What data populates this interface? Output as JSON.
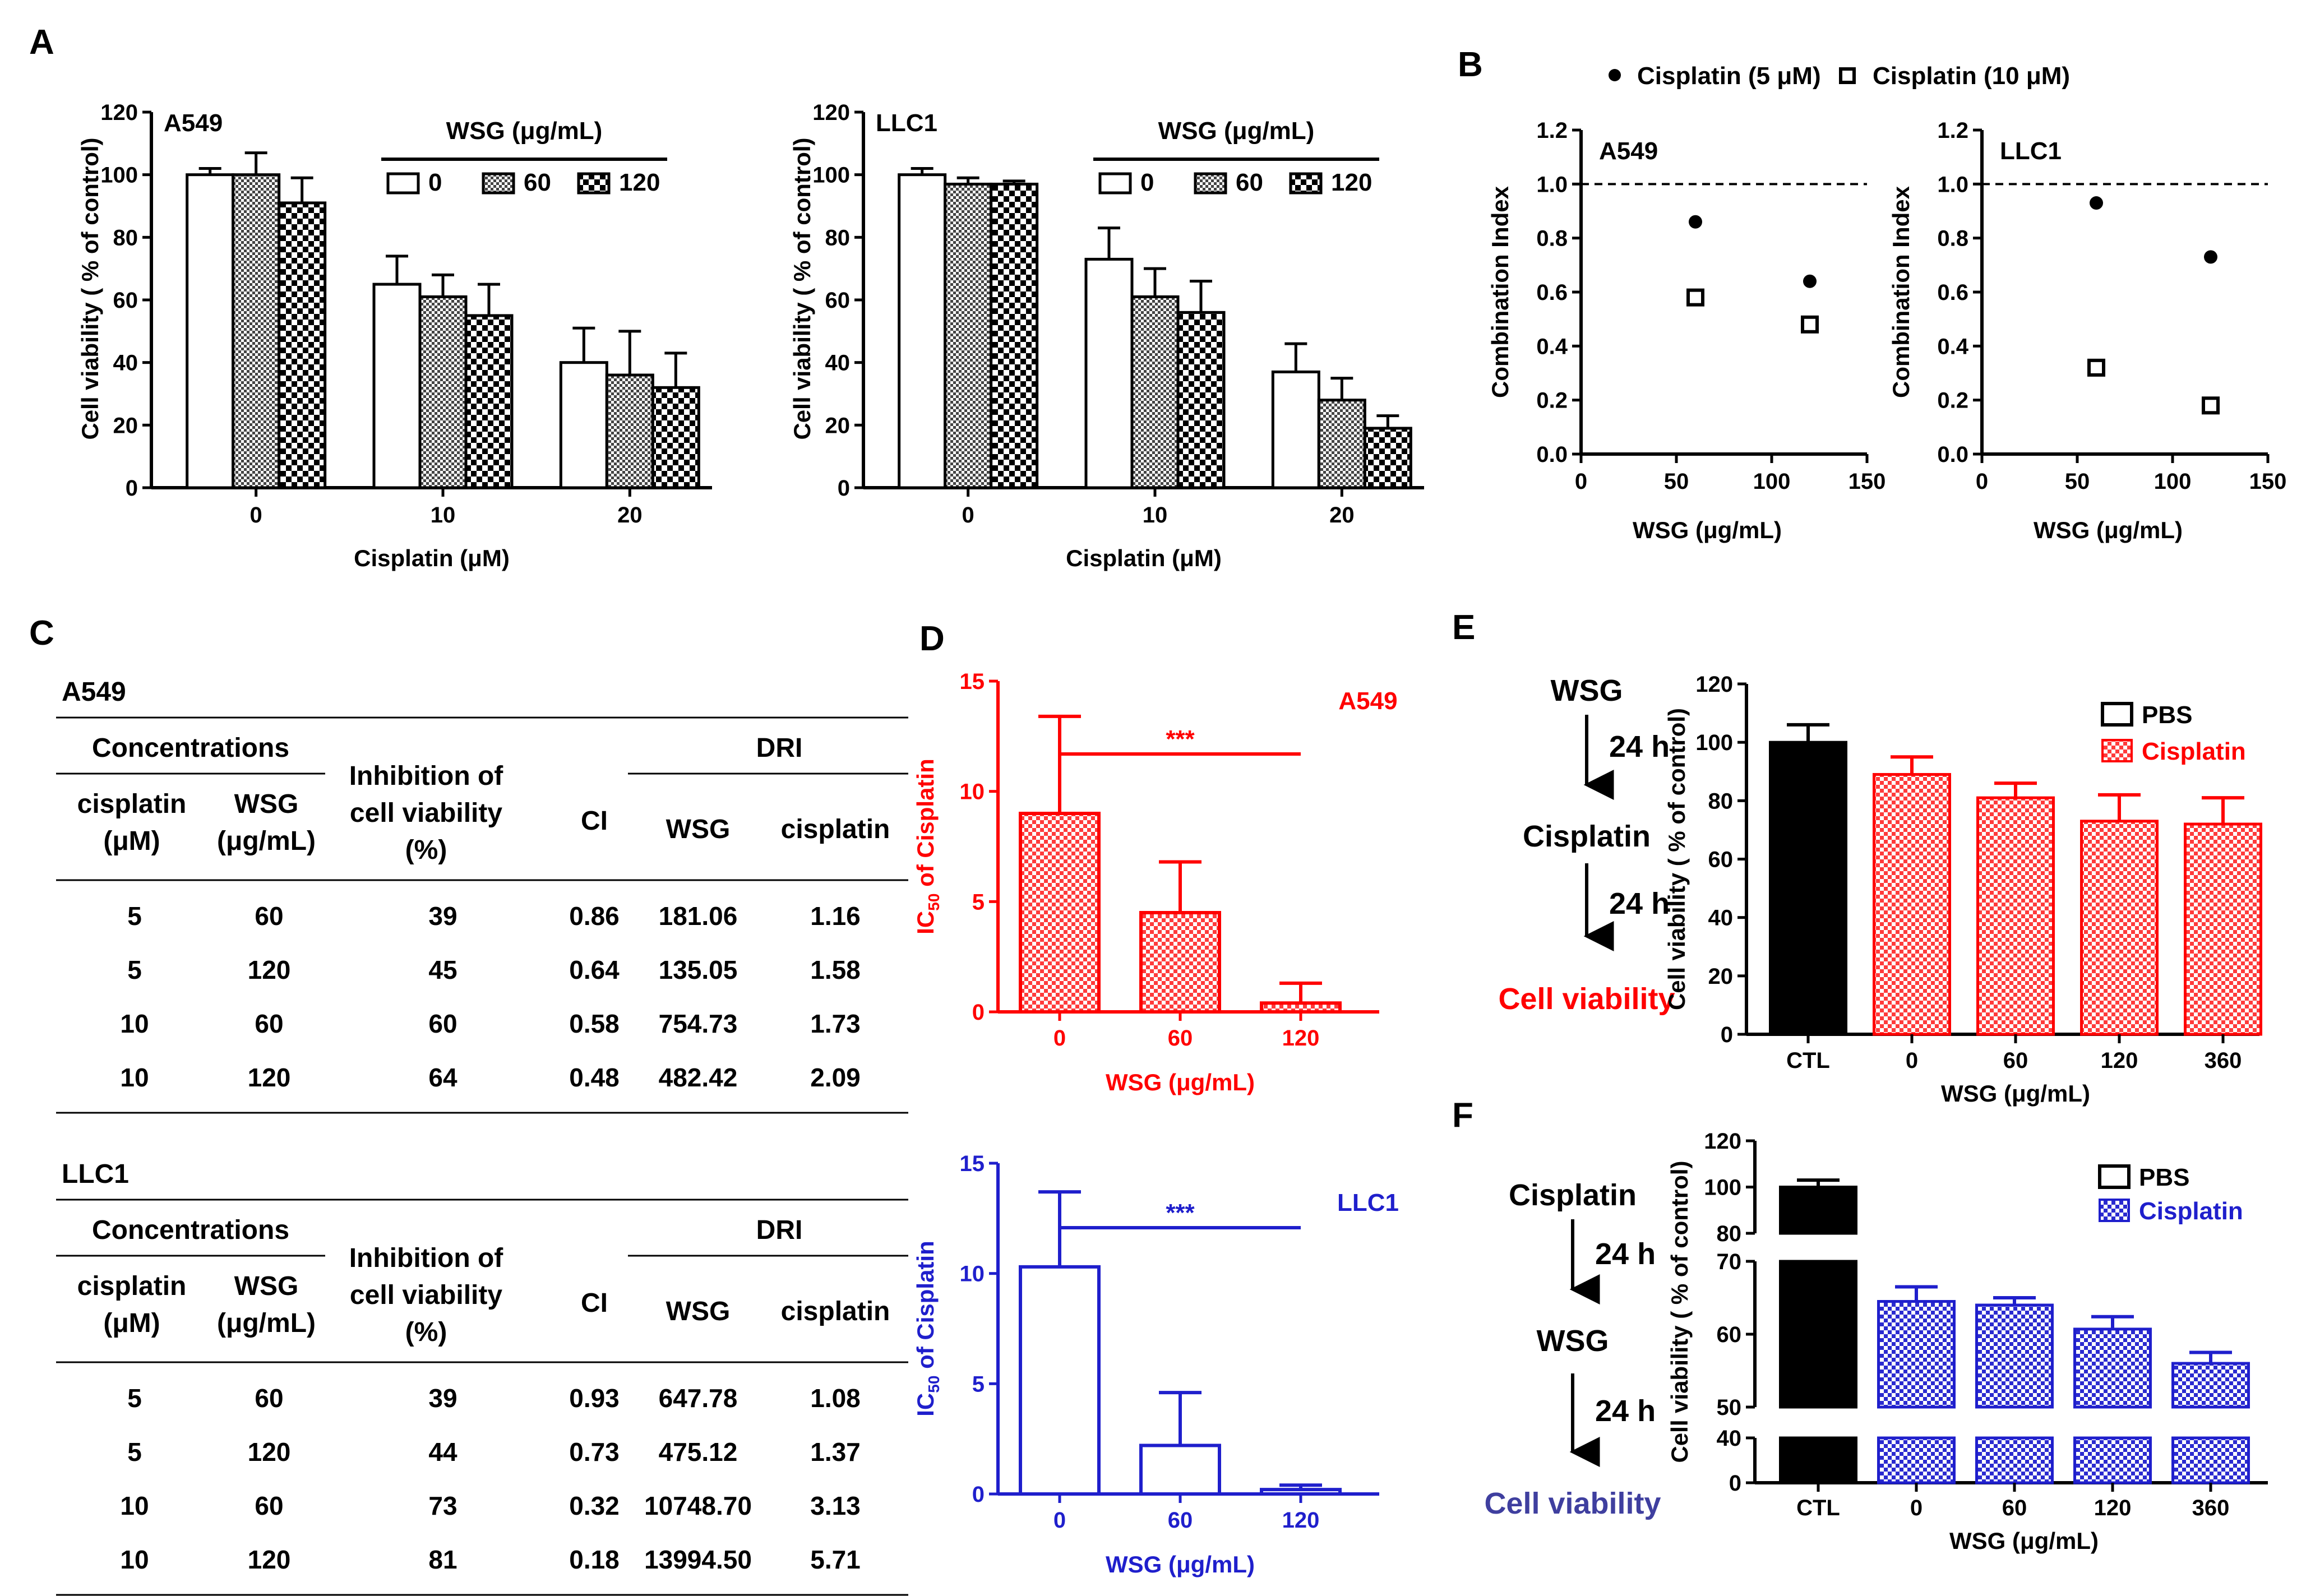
{
  "panel_labels": {
    "a": "A",
    "b": "B",
    "c": "C",
    "d": "D",
    "e": "E",
    "f": "F"
  },
  "colors": {
    "red": "#ff0000",
    "blue": "#1f1fcc",
    "flow_blue": "#3f3f9f",
    "black": "#000000"
  },
  "text": {
    "wsg_title": "WSG (μg/mL)",
    "wsg_axis": "WSG (μg/mL)",
    "cisplatin_axis": "Cisplatin (μM)",
    "viability_axis": "Cell viability ( % of control)",
    "ci_axis": "Combination Index",
    "ic50_axis": "IC50 of Cisplatin",
    "ic50_axis_pre": "IC",
    "ic50_axis_sub": "50",
    "ic50_axis_post": " of Cisplatin",
    "b_legend_1": "Cisplatin (5 μM)",
    "b_legend_2": "Cisplatin (10 μM)",
    "legend_pbs": "PBS",
    "legend_cisplatin": "Cisplatin"
  },
  "chart_data": [
    {
      "id": "A_A549",
      "type": "bar",
      "title": "A549",
      "xlabel": "Cisplatin (μM)",
      "ylabel": "Cell viability ( % of control)",
      "categories": [
        "0",
        "10",
        "20"
      ],
      "ylim": [
        0,
        120
      ],
      "yticks": [
        "0",
        "20",
        "40",
        "60",
        "80",
        "100",
        "120"
      ],
      "legend_title": "WSG (μg/mL)",
      "series": [
        {
          "name": "0",
          "values": [
            100,
            65,
            40
          ],
          "errors": [
            2,
            9,
            11
          ]
        },
        {
          "name": "60",
          "values": [
            100,
            61,
            36
          ],
          "errors": [
            7,
            7,
            14
          ]
        },
        {
          "name": "120",
          "values": [
            91,
            55,
            32
          ],
          "errors": [
            8,
            10,
            11
          ]
        }
      ]
    },
    {
      "id": "A_LLC1",
      "type": "bar",
      "title": "LLC1",
      "xlabel": "Cisplatin (μM)",
      "ylabel": "Cell viability ( % of control)",
      "categories": [
        "0",
        "10",
        "20"
      ],
      "ylim": [
        0,
        120
      ],
      "yticks": [
        "0",
        "20",
        "40",
        "60",
        "80",
        "100",
        "120"
      ],
      "legend_title": "WSG (μg/mL)",
      "series": [
        {
          "name": "0",
          "values": [
            100,
            73,
            37
          ],
          "errors": [
            2,
            10,
            9
          ]
        },
        {
          "name": "60",
          "values": [
            97,
            61,
            28
          ],
          "errors": [
            2,
            9,
            7
          ]
        },
        {
          "name": "120",
          "values": [
            97,
            56,
            19
          ],
          "errors": [
            1,
            10,
            4
          ]
        }
      ]
    },
    {
      "id": "B_A549",
      "type": "scatter",
      "title": "A549",
      "xlabel": "WSG (μg/mL)",
      "ylabel": "Combination Index",
      "xlim": [
        0,
        150
      ],
      "ylim": [
        0,
        1.2
      ],
      "xticks": [
        "0",
        "50",
        "100",
        "150"
      ],
      "yticks": [
        "0.0",
        "0.2",
        "0.4",
        "0.6",
        "0.8",
        "1.0",
        "1.2"
      ],
      "reference_line": 1.0,
      "series": [
        {
          "name": "Cisplatin (5 μM)",
          "x": [
            60,
            120
          ],
          "y": [
            0.86,
            0.64
          ]
        },
        {
          "name": "Cisplatin (10 μM)",
          "x": [
            60,
            120
          ],
          "y": [
            0.58,
            0.48
          ]
        }
      ]
    },
    {
      "id": "B_LLC1",
      "type": "scatter",
      "title": "LLC1",
      "xlabel": "WSG (μg/mL)",
      "ylabel": "Combination Index",
      "xlim": [
        0,
        150
      ],
      "ylim": [
        0,
        1.2
      ],
      "xticks": [
        "0",
        "50",
        "100",
        "150"
      ],
      "yticks": [
        "0.0",
        "0.2",
        "0.4",
        "0.6",
        "0.8",
        "1.0",
        "1.2"
      ],
      "reference_line": 1.0,
      "series": [
        {
          "name": "Cisplatin (5 μM)",
          "x": [
            60,
            120
          ],
          "y": [
            0.93,
            0.73
          ]
        },
        {
          "name": "Cisplatin (10 μM)",
          "x": [
            60,
            120
          ],
          "y": [
            0.32,
            0.18
          ]
        }
      ]
    },
    {
      "id": "C_A549",
      "type": "table",
      "title": "A549",
      "header": {
        "group_conc": "Concentrations",
        "group_dri": "DRI",
        "inhibition": [
          "Inhibition of",
          "cell viability",
          "(%)"
        ],
        "ci": "CI",
        "cisplatin": [
          "cisplatin",
          "(μM)"
        ],
        "wsg": [
          "WSG",
          "(μg/mL)"
        ],
        "dri_wsg": "WSG",
        "dri_cisplatin": "cisplatin"
      },
      "rows": [
        [
          "5",
          "60",
          "39",
          "0.86",
          "181.06",
          "1.16"
        ],
        [
          "5",
          "120",
          "45",
          "0.64",
          "135.05",
          "1.58"
        ],
        [
          "10",
          "60",
          "60",
          "0.58",
          "754.73",
          "1.73"
        ],
        [
          "10",
          "120",
          "64",
          "0.48",
          "482.42",
          "2.09"
        ]
      ]
    },
    {
      "id": "C_LLC1",
      "type": "table",
      "title": "LLC1",
      "header": {
        "group_conc": "Concentrations",
        "group_dri": "DRI",
        "inhibition": [
          "Inhibition of",
          "cell viability",
          "(%)"
        ],
        "ci": "CI",
        "cisplatin": [
          "cisplatin",
          "(μM)"
        ],
        "wsg": [
          "WSG",
          "(μg/mL)"
        ],
        "dri_wsg": "WSG",
        "dri_cisplatin": "cisplatin"
      },
      "rows": [
        [
          "5",
          "60",
          "39",
          "0.93",
          "647.78",
          "1.08"
        ],
        [
          "5",
          "120",
          "44",
          "0.73",
          "475.12",
          "1.37"
        ],
        [
          "10",
          "60",
          "73",
          "0.32",
          "10748.70",
          "3.13"
        ],
        [
          "10",
          "120",
          "81",
          "0.18",
          "13994.50",
          "5.71"
        ]
      ]
    },
    {
      "id": "D_A549",
      "type": "bar",
      "title": "A549",
      "xlabel": "WSG (μg/mL)",
      "ylabel": "IC50 of Cisplatin",
      "categories": [
        "0",
        "60",
        "120"
      ],
      "ylim": [
        0,
        15
      ],
      "yticks": [
        "0",
        "5",
        "10",
        "15"
      ],
      "significance": "***",
      "series": [
        {
          "name": "A549",
          "values": [
            9.0,
            4.5,
            0.4
          ],
          "errors": [
            4.4,
            2.3,
            0.9
          ]
        }
      ]
    },
    {
      "id": "D_LLC1",
      "type": "bar",
      "title": "LLC1",
      "xlabel": "WSG (μg/mL)",
      "ylabel": "IC50 of Cisplatin",
      "categories": [
        "0",
        "60",
        "120"
      ],
      "ylim": [
        0,
        15
      ],
      "yticks": [
        "0",
        "5",
        "10",
        "15"
      ],
      "significance": "***",
      "series": [
        {
          "name": "LLC1",
          "values": [
            10.3,
            2.2,
            0.2
          ],
          "errors": [
            3.4,
            2.4,
            0.2
          ]
        }
      ]
    },
    {
      "id": "E",
      "type": "bar",
      "xlabel": "WSG (μg/mL)",
      "ylabel": "Cell viability ( % of control)",
      "categories": [
        "CTL",
        "0",
        "60",
        "120",
        "360"
      ],
      "ylim": [
        0,
        120
      ],
      "yticks": [
        "0",
        "20",
        "40",
        "60",
        "80",
        "100",
        "120"
      ],
      "legend": [
        "PBS",
        "Cisplatin"
      ],
      "series": [
        {
          "name": "values",
          "values": [
            100,
            89,
            81,
            73,
            72
          ],
          "errors": [
            6,
            6,
            5,
            9,
            9
          ]
        }
      ],
      "flow": [
        "WSG",
        "24 h",
        "Cisplatin",
        "24 h",
        "Cell viability"
      ]
    },
    {
      "id": "F",
      "type": "bar",
      "xlabel": "WSG (μg/mL)",
      "ylabel": "Cell viability ( % of control)",
      "categories": [
        "CTL",
        "0",
        "60",
        "120",
        "360"
      ],
      "y_broken_axis": true,
      "yticks_upper": [
        "80",
        "100",
        "120"
      ],
      "yticks_mid": [
        "50",
        "60",
        "70"
      ],
      "yticks_lower": [
        "0",
        "40"
      ],
      "legend": [
        "PBS",
        "Cisplatin"
      ],
      "series": [
        {
          "name": "values",
          "values": [
            100,
            64.5,
            64,
            60.7,
            56
          ],
          "errors": [
            3,
            2,
            1,
            1.7,
            1.5
          ]
        }
      ],
      "flow": [
        "Cisplatin",
        "24 h",
        "WSG",
        "24 h",
        "Cell viability"
      ]
    }
  ]
}
